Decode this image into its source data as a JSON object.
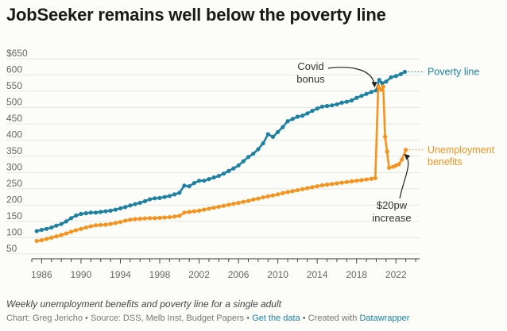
{
  "title": "JobSeeker remains well below the poverty line",
  "caption": "Weekly unemployment benefits and poverty line for a single adult",
  "footer": {
    "chart_by": "Chart: Greg Jericho",
    "sep1": " • ",
    "source": "Source: DSS, Melb Inst, Budget Papers",
    "sep2": " • ",
    "get_data": "Get the data",
    "sep3": " • ",
    "created_with": "Created with ",
    "datawrapper": "Datawrapper"
  },
  "colors": {
    "poverty": "#1d81a2",
    "benefits": "#f4931e",
    "grid": "#e6e6e2",
    "annotation": "#222222"
  },
  "chart_data": {
    "type": "line",
    "title": "JobSeeker remains well below the poverty line",
    "xlabel": "",
    "ylabel": "",
    "xlim": [
      1985,
      2024.4
    ],
    "ylim": [
      35,
      660
    ],
    "x_ticks": [
      1986,
      1990,
      1994,
      1998,
      2002,
      2006,
      2010,
      2014,
      2018,
      2022
    ],
    "y_ticks": [
      50,
      100,
      150,
      200,
      250,
      300,
      350,
      400,
      450,
      500,
      550,
      600,
      650
    ],
    "y_tick_labels": [
      "50",
      "100",
      "150",
      "200",
      "250",
      "300",
      "350",
      "400",
      "450",
      "500",
      "550",
      "600",
      "$650"
    ],
    "grid": true,
    "series": [
      {
        "name": "Poverty line",
        "color": "#1d81a2",
        "points": [
          [
            1985.5,
            120
          ],
          [
            1986,
            124
          ],
          [
            1986.5,
            127
          ],
          [
            1987,
            131
          ],
          [
            1987.5,
            137
          ],
          [
            1988,
            142
          ],
          [
            1988.5,
            150
          ],
          [
            1989,
            160
          ],
          [
            1989.5,
            168
          ],
          [
            1990,
            173
          ],
          [
            1990.5,
            175
          ],
          [
            1991,
            177
          ],
          [
            1991.5,
            177
          ],
          [
            1992,
            179
          ],
          [
            1992.5,
            181
          ],
          [
            1993,
            183
          ],
          [
            1993.5,
            186
          ],
          [
            1994,
            190
          ],
          [
            1994.5,
            194
          ],
          [
            1995,
            199
          ],
          [
            1995.5,
            203
          ],
          [
            1996,
            207
          ],
          [
            1996.5,
            212
          ],
          [
            1997,
            218
          ],
          [
            1997.5,
            221
          ],
          [
            1998,
            222
          ],
          [
            1998.5,
            225
          ],
          [
            1999,
            228
          ],
          [
            1999.5,
            233
          ],
          [
            2000,
            238
          ],
          [
            2000.5,
            260
          ],
          [
            2001,
            258
          ],
          [
            2001.5,
            268
          ],
          [
            2002,
            275
          ],
          [
            2002.5,
            275
          ],
          [
            2003,
            280
          ],
          [
            2003.5,
            285
          ],
          [
            2004,
            290
          ],
          [
            2004.5,
            297
          ],
          [
            2005,
            305
          ],
          [
            2005.5,
            313
          ],
          [
            2006,
            322
          ],
          [
            2006.5,
            335
          ],
          [
            2007,
            348
          ],
          [
            2007.5,
            358
          ],
          [
            2008,
            372
          ],
          [
            2008.5,
            390
          ],
          [
            2009,
            418
          ],
          [
            2009.5,
            410
          ],
          [
            2010,
            425
          ],
          [
            2010.5,
            440
          ],
          [
            2011,
            458
          ],
          [
            2011.5,
            465
          ],
          [
            2012,
            472
          ],
          [
            2012.5,
            475
          ],
          [
            2013,
            482
          ],
          [
            2013.5,
            490
          ],
          [
            2014,
            497
          ],
          [
            2014.5,
            503
          ],
          [
            2015,
            505
          ],
          [
            2015.5,
            507
          ],
          [
            2016,
            510
          ],
          [
            2016.5,
            515
          ],
          [
            2017,
            518
          ],
          [
            2017.5,
            522
          ],
          [
            2018,
            530
          ],
          [
            2018.5,
            536
          ],
          [
            2019,
            542
          ],
          [
            2019.5,
            548
          ],
          [
            2020,
            553
          ],
          [
            2020.3,
            585
          ],
          [
            2020.6,
            575
          ],
          [
            2021,
            580
          ],
          [
            2021.5,
            593
          ],
          [
            2022,
            597
          ],
          [
            2022.5,
            603
          ],
          [
            2022.9,
            610
          ]
        ]
      },
      {
        "name": "Unemployment benefits",
        "color": "#f4931e",
        "points": [
          [
            1985.5,
            90
          ],
          [
            1986,
            92
          ],
          [
            1986.5,
            96
          ],
          [
            1987,
            100
          ],
          [
            1987.5,
            104
          ],
          [
            1988,
            108
          ],
          [
            1988.5,
            113
          ],
          [
            1989,
            118
          ],
          [
            1989.5,
            123
          ],
          [
            1990,
            127
          ],
          [
            1990.5,
            131
          ],
          [
            1991,
            135
          ],
          [
            1991.5,
            138
          ],
          [
            1992,
            139
          ],
          [
            1992.5,
            140
          ],
          [
            1993,
            142
          ],
          [
            1993.5,
            145
          ],
          [
            1994,
            148
          ],
          [
            1994.5,
            152
          ],
          [
            1995,
            155
          ],
          [
            1995.5,
            157
          ],
          [
            1996,
            158
          ],
          [
            1996.5,
            159
          ],
          [
            1997,
            160
          ],
          [
            1997.5,
            160
          ],
          [
            1998,
            161
          ],
          [
            1998.5,
            162
          ],
          [
            1999,
            163
          ],
          [
            1999.5,
            165
          ],
          [
            2000,
            167
          ],
          [
            2000.5,
            177
          ],
          [
            2001,
            179
          ],
          [
            2001.5,
            181
          ],
          [
            2002,
            183
          ],
          [
            2002.5,
            186
          ],
          [
            2003,
            189
          ],
          [
            2003.5,
            192
          ],
          [
            2004,
            195
          ],
          [
            2004.5,
            198
          ],
          [
            2005,
            201
          ],
          [
            2005.5,
            204
          ],
          [
            2006,
            207
          ],
          [
            2006.5,
            210
          ],
          [
            2007,
            213
          ],
          [
            2007.5,
            217
          ],
          [
            2008,
            220
          ],
          [
            2008.5,
            224
          ],
          [
            2009,
            227
          ],
          [
            2009.5,
            230
          ],
          [
            2010,
            233
          ],
          [
            2010.5,
            237
          ],
          [
            2011,
            240
          ],
          [
            2011.5,
            243
          ],
          [
            2012,
            246
          ],
          [
            2012.5,
            249
          ],
          [
            2013,
            252
          ],
          [
            2013.5,
            255
          ],
          [
            2014,
            258
          ],
          [
            2014.5,
            261
          ],
          [
            2015,
            263
          ],
          [
            2015.5,
            265
          ],
          [
            2016,
            267
          ],
          [
            2016.5,
            269
          ],
          [
            2017,
            271
          ],
          [
            2017.5,
            273
          ],
          [
            2018,
            275
          ],
          [
            2018.5,
            277
          ],
          [
            2019,
            279
          ],
          [
            2019.5,
            281
          ],
          [
            2019.9,
            283
          ],
          [
            2020.2,
            565
          ],
          [
            2020.5,
            555
          ],
          [
            2020.7,
            565
          ],
          [
            2020.9,
            410
          ],
          [
            2021.1,
            365
          ],
          [
            2021.3,
            315
          ],
          [
            2021.7,
            318
          ],
          [
            2022,
            322
          ],
          [
            2022.3,
            326
          ],
          [
            2022.6,
            340
          ],
          [
            2023,
            370
          ]
        ]
      }
    ],
    "annotations": [
      {
        "lines": [
          "Covid",
          "bonus"
        ]
      },
      {
        "lines": [
          "$20pw",
          "increase"
        ]
      }
    ],
    "series_labels": [
      {
        "lines": [
          "Poverty line"
        ]
      },
      {
        "lines": [
          "Unemployment",
          "benefits"
        ]
      }
    ]
  }
}
